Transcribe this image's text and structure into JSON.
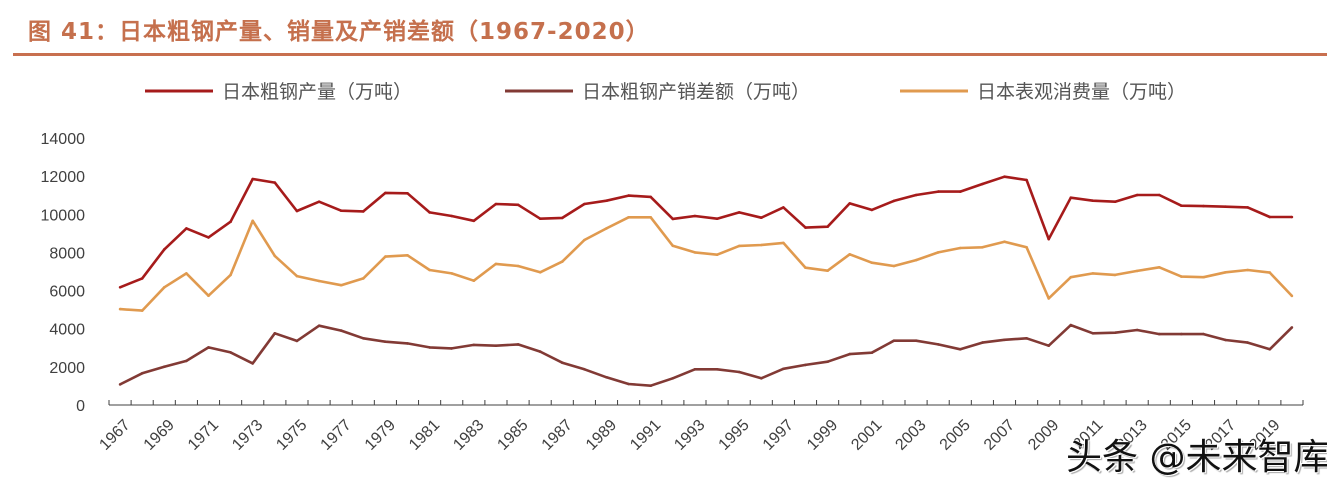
{
  "header": {
    "title": "图 41：日本粗钢产量、销量及产销差额（1967-2020）"
  },
  "watermark": "头条 @未来智库",
  "colors": {
    "title": "#c5704d",
    "production": "#a61b1b",
    "difference": "#823a35",
    "consumption": "#e09a4f",
    "axis": "#404040"
  },
  "chart_data": {
    "type": "line",
    "title": "日本粗钢产量、销量及产销差额（1967-2020）",
    "xlabel": "",
    "ylabel": "",
    "ylim": [
      0,
      14000
    ],
    "yticks": [
      0,
      2000,
      4000,
      6000,
      8000,
      10000,
      12000,
      14000
    ],
    "grid": false,
    "legend_position": "top",
    "x": [
      1967,
      1968,
      1969,
      1970,
      1971,
      1972,
      1973,
      1974,
      1975,
      1976,
      1977,
      1978,
      1979,
      1980,
      1981,
      1982,
      1983,
      1984,
      1985,
      1986,
      1987,
      1988,
      1989,
      1990,
      1991,
      1992,
      1993,
      1994,
      1995,
      1996,
      1997,
      1998,
      1999,
      2000,
      2001,
      2002,
      2003,
      2004,
      2005,
      2006,
      2007,
      2008,
      2009,
      2010,
      2011,
      2012,
      2013,
      2014,
      2015,
      2016,
      2017,
      2018,
      2019,
      2020
    ],
    "xtick_labels": [
      "1967",
      "1969",
      "1971",
      "1973",
      "1975",
      "1977",
      "1979",
      "1981",
      "1983",
      "1985",
      "1987",
      "1989",
      "1991",
      "1993",
      "1995",
      "1997",
      "1999",
      "2001",
      "2003",
      "2005",
      "2007",
      "2009",
      "2011",
      "2013",
      "2015",
      "2017",
      "2019"
    ],
    "series": [
      {
        "name": "日本粗钢产量（万吨）",
        "key": "production",
        "values": [
          6170,
          6640,
          8160,
          9260,
          8790,
          9610,
          11850,
          11660,
          10170,
          10660,
          10190,
          10150,
          11120,
          11100,
          10100,
          9910,
          9660,
          10540,
          10500,
          9770,
          9810,
          10540,
          10710,
          10980,
          10910,
          9760,
          9910,
          9770,
          10100,
          9820,
          10360,
          9300,
          9350,
          10570,
          10230,
          10700,
          11010,
          11190,
          11190,
          11590,
          11970,
          11800,
          8700,
          10870,
          10710,
          10660,
          11010,
          11010,
          10450,
          10430,
          10400,
          10360,
          9860,
          9860
        ]
      },
      {
        "name": "日本粗钢产销差额（万吨）",
        "key": "difference",
        "values": [
          1080,
          1660,
          2010,
          2310,
          3020,
          2760,
          2180,
          3760,
          3360,
          4160,
          3900,
          3500,
          3320,
          3230,
          3020,
          2970,
          3150,
          3110,
          3180,
          2800,
          2220,
          1870,
          1450,
          1100,
          1010,
          1400,
          1870,
          1870,
          1730,
          1400,
          1900,
          2100,
          2270,
          2670,
          2740,
          3370,
          3370,
          3180,
          2920,
          3270,
          3420,
          3500,
          3110,
          4190,
          3760,
          3790,
          3930,
          3720,
          3720,
          3720,
          3410,
          3270,
          2920,
          4070
        ]
      },
      {
        "name": "日本表观消费量（万吨）",
        "key": "consumption",
        "values": [
          5030,
          4950,
          6170,
          6900,
          5730,
          6820,
          9660,
          7820,
          6760,
          6500,
          6280,
          6640,
          7780,
          7850,
          7080,
          6900,
          6520,
          7400,
          7290,
          6960,
          7520,
          8650,
          9260,
          9840,
          9840,
          8350,
          8000,
          7880,
          8340,
          8390,
          8500,
          7200,
          7040,
          7900,
          7460,
          7290,
          7600,
          8000,
          8230,
          8270,
          8560,
          8270,
          5590,
          6700,
          6900,
          6820,
          7030,
          7220,
          6730,
          6700,
          6960,
          7080,
          6940,
          5720
        ]
      }
    ]
  }
}
